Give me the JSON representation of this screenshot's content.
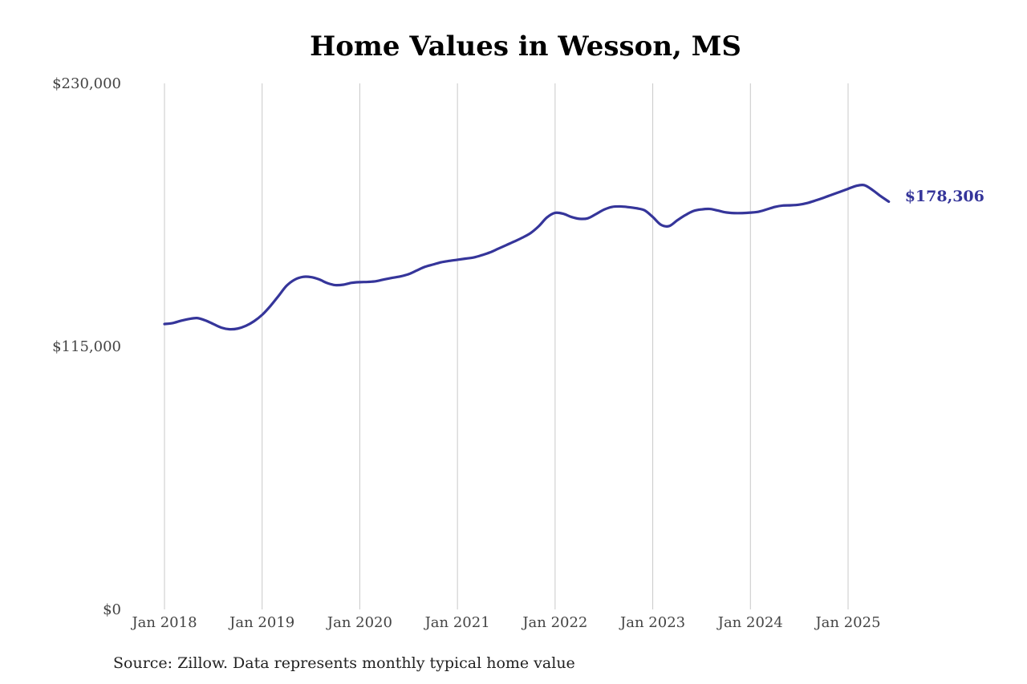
{
  "chart_data": {
    "type": "line",
    "title": "Home Values in Wesson, MS",
    "source": "Source: Zillow. Data represents monthly typical home value",
    "xlabel": "",
    "ylabel": "",
    "ylim": [
      0,
      230000
    ],
    "xlim": [
      "2018-01",
      "2025-06"
    ],
    "grid": "vertical",
    "legend": "none",
    "y_ticks": [
      {
        "value": 0,
        "label": "$0"
      },
      {
        "value": 115000,
        "label": "$115,000"
      },
      {
        "value": 230000,
        "label": "$230,000"
      }
    ],
    "x_ticks": [
      {
        "value": "2018-01",
        "label": "Jan 2018"
      },
      {
        "value": "2019-01",
        "label": "Jan 2019"
      },
      {
        "value": "2020-01",
        "label": "Jan 2020"
      },
      {
        "value": "2021-01",
        "label": "Jan 2021"
      },
      {
        "value": "2022-01",
        "label": "Jan 2022"
      },
      {
        "value": "2023-01",
        "label": "Jan 2023"
      },
      {
        "value": "2024-01",
        "label": "Jan 2024"
      },
      {
        "value": "2025-01",
        "label": "Jan 2025"
      }
    ],
    "end_label": "$178,306",
    "colors": {
      "line": "#35359a",
      "grid": "#c8c8c8"
    },
    "x": [
      "2018-01",
      "2018-02",
      "2018-03",
      "2018-04",
      "2018-05",
      "2018-06",
      "2018-07",
      "2018-08",
      "2018-09",
      "2018-10",
      "2018-11",
      "2018-12",
      "2019-01",
      "2019-02",
      "2019-03",
      "2019-04",
      "2019-05",
      "2019-06",
      "2019-07",
      "2019-08",
      "2019-09",
      "2019-10",
      "2019-11",
      "2019-12",
      "2020-01",
      "2020-02",
      "2020-03",
      "2020-04",
      "2020-05",
      "2020-06",
      "2020-07",
      "2020-08",
      "2020-09",
      "2020-10",
      "2020-11",
      "2020-12",
      "2021-01",
      "2021-02",
      "2021-03",
      "2021-04",
      "2021-05",
      "2021-06",
      "2021-07",
      "2021-08",
      "2021-09",
      "2021-10",
      "2021-11",
      "2021-12",
      "2022-01",
      "2022-02",
      "2022-03",
      "2022-04",
      "2022-05",
      "2022-06",
      "2022-07",
      "2022-08",
      "2022-09",
      "2022-10",
      "2022-11",
      "2022-12",
      "2023-01",
      "2023-02",
      "2023-03",
      "2023-04",
      "2023-05",
      "2023-06",
      "2023-07",
      "2023-08",
      "2023-09",
      "2023-10",
      "2023-11",
      "2023-12",
      "2024-01",
      "2024-02",
      "2024-03",
      "2024-04",
      "2024-05",
      "2024-06",
      "2024-07",
      "2024-08",
      "2024-09",
      "2024-10",
      "2024-11",
      "2024-12",
      "2025-01",
      "2025-02",
      "2025-03",
      "2025-04",
      "2025-05",
      "2025-06"
    ],
    "series": [
      {
        "values": [
          124800,
          125200,
          126200,
          127000,
          127400,
          126400,
          124800,
          123200,
          122500,
          122800,
          124000,
          126000,
          128800,
          132600,
          137000,
          141500,
          144200,
          145400,
          145300,
          144300,
          142700,
          141800,
          142000,
          142800,
          143100,
          143200,
          143500,
          144300,
          145000,
          145600,
          146600,
          148200,
          149800,
          150800,
          151800,
          152400,
          152900,
          153400,
          153900,
          154900,
          156100,
          157700,
          159300,
          160900,
          162600,
          164600,
          167600,
          171400,
          173400,
          173000,
          171600,
          170800,
          171000,
          172800,
          174800,
          176000,
          176200,
          175900,
          175400,
          174500,
          171600,
          168200,
          167600,
          170100,
          172400,
          174200,
          174900,
          175100,
          174400,
          173600,
          173300,
          173300,
          173500,
          173900,
          174900,
          176000,
          176600,
          176700,
          177000,
          177700,
          178800,
          180000,
          181300,
          182600,
          183900,
          185200,
          185500,
          183400,
          180700,
          178306
        ]
      }
    ]
  }
}
